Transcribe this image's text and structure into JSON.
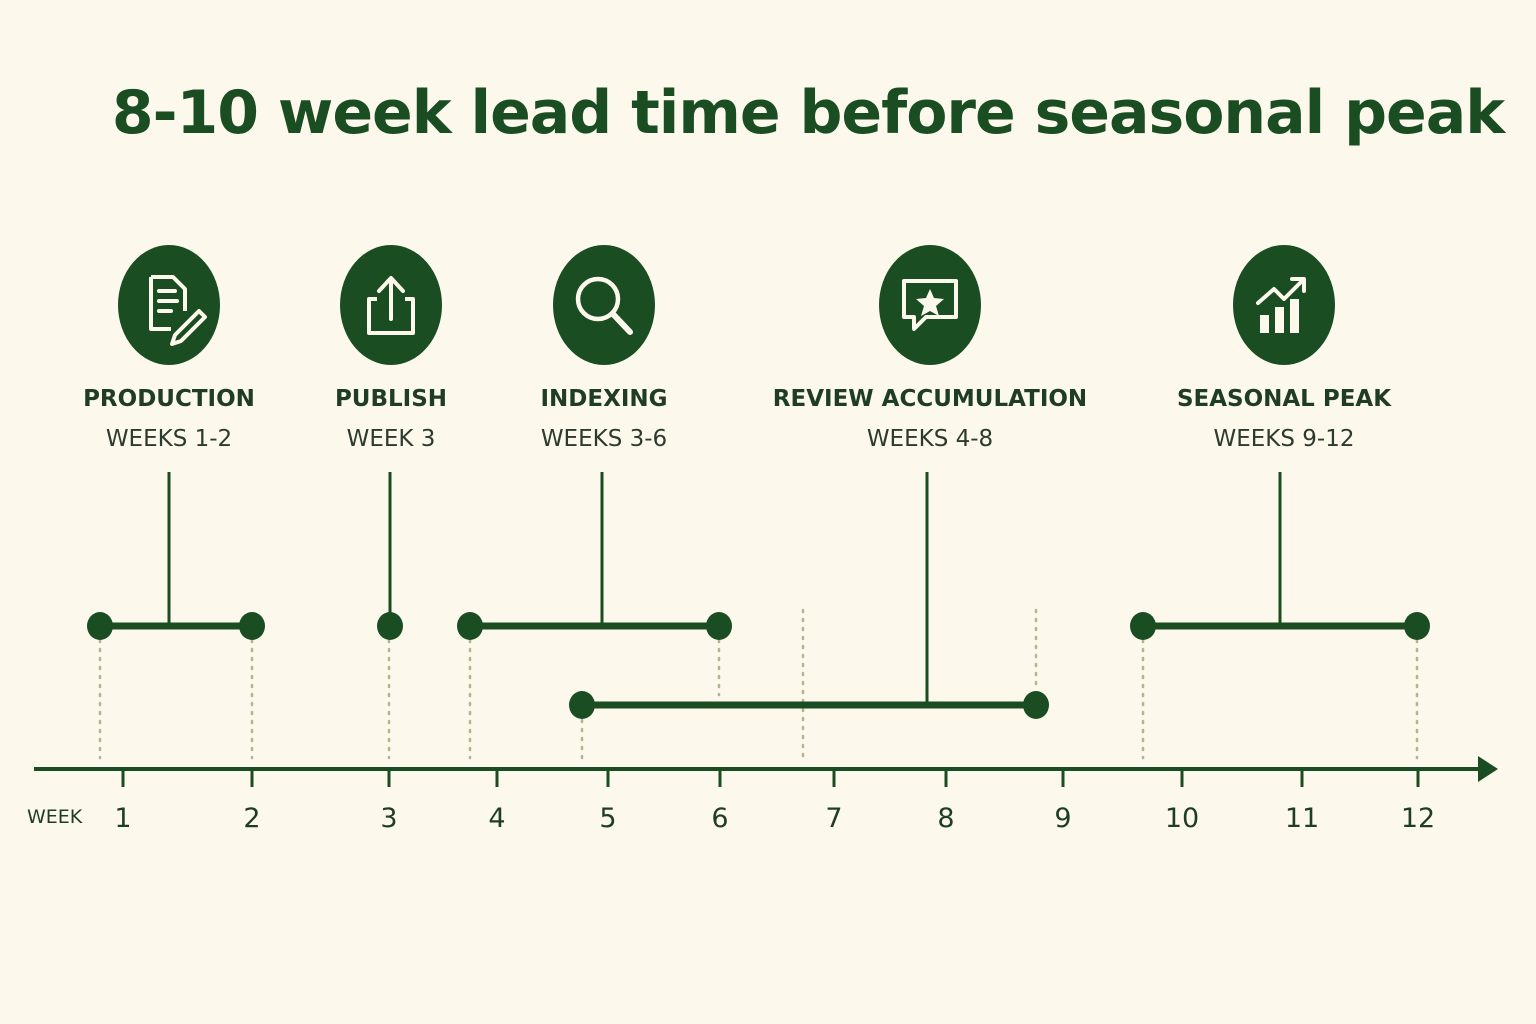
{
  "title": "8-10 week lead time before seasonal peak",
  "axis": {
    "label": "WEEK",
    "ticks": [
      "1",
      "2",
      "3",
      "4",
      "5",
      "6",
      "7",
      "8",
      "9",
      "10",
      "11",
      "12"
    ]
  },
  "stages": [
    {
      "id": "production",
      "name": "PRODUCTION",
      "weeks": "WEEKS 1-2",
      "icon": "document-pencil-icon",
      "start": 0.8,
      "end": 2.0
    },
    {
      "id": "publish",
      "name": "PUBLISH",
      "weeks": "WEEK 3",
      "icon": "upload-icon",
      "start": 3.0,
      "end": 3.0
    },
    {
      "id": "indexing",
      "name": "INDEXING",
      "weeks": "WEEKS 3-6",
      "icon": "search-icon",
      "start": 3.7,
      "end": 6.0
    },
    {
      "id": "review-accumulation",
      "name": "REVIEW ACCUMULATION",
      "weeks": "WEEKS 4-8",
      "icon": "star-chat-icon",
      "start": 4.7,
      "end": 8.8
    },
    {
      "id": "seasonal-peak",
      "name": "SEASONAL PEAK",
      "weeks": "WEEKS 9-12",
      "icon": "growth-chart-icon",
      "start": 9.7,
      "end": 12.0
    }
  ],
  "colors": {
    "background": "#fcf8ec",
    "primary": "#1b4d22",
    "dotted": "#b5b48f"
  }
}
